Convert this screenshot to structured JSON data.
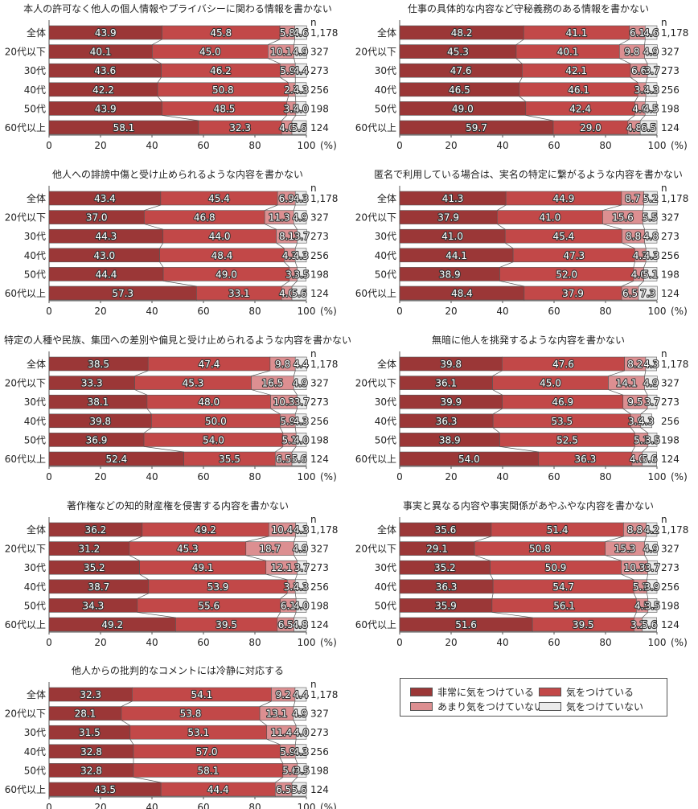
{
  "categories": [
    "全体",
    "20代以下",
    "30代",
    "40代",
    "50代",
    "60代以上"
  ],
  "n_header": "n",
  "n_values": [
    "1,178",
    "327",
    "273",
    "256",
    "198",
    "124"
  ],
  "x_ticks": [
    "0",
    "20",
    "40",
    "60",
    "80",
    "100"
  ],
  "x_unit": "(%)",
  "colors": [
    "#9b3737",
    "#c24848",
    "#dc8f91",
    "#ebebeb"
  ],
  "legend": [
    "非常に気をつけている",
    "気をつけている",
    "あまり気をつけていない",
    "気をつけていない"
  ],
  "chart_data": [
    {
      "type": "bar",
      "stacked": true,
      "orientation": "horizontal",
      "title": "本人の許可なく他人の個人情報やプライバシーに関わる情報を書かない",
      "values": [
        [
          43.9,
          45.8,
          5.8,
          4.6
        ],
        [
          40.1,
          45.0,
          10.1,
          4.9
        ],
        [
          43.6,
          46.2,
          5.9,
          4.4
        ],
        [
          42.2,
          50.8,
          2.7,
          4.3
        ],
        [
          43.9,
          48.5,
          3.5,
          4.0
        ],
        [
          58.1,
          32.3,
          4.0,
          5.6
        ]
      ]
    },
    {
      "type": "bar",
      "stacked": true,
      "orientation": "horizontal",
      "title": "仕事の具体的な内容など守秘義務のある情報を書かない",
      "values": [
        [
          48.2,
          41.1,
          6.1,
          4.6
        ],
        [
          45.3,
          40.1,
          9.8,
          4.9
        ],
        [
          47.6,
          42.1,
          6.6,
          3.7
        ],
        [
          46.5,
          46.1,
          3.1,
          4.3
        ],
        [
          49.0,
          42.4,
          4.0,
          4.5
        ],
        [
          59.7,
          29.0,
          4.8,
          6.5
        ]
      ]
    },
    {
      "type": "bar",
      "stacked": true,
      "orientation": "horizontal",
      "title": "他人への誹謗中傷と受け止められるような内容を書かない",
      "values": [
        [
          43.4,
          45.4,
          6.9,
          4.3
        ],
        [
          37.0,
          46.8,
          11.3,
          4.9
        ],
        [
          44.3,
          44.0,
          8.1,
          3.7
        ],
        [
          43.0,
          48.4,
          4.3,
          4.3
        ],
        [
          44.4,
          49.0,
          3.0,
          3.5
        ],
        [
          57.3,
          33.1,
          4.0,
          5.6
        ]
      ]
    },
    {
      "type": "bar",
      "stacked": true,
      "orientation": "horizontal",
      "title": "匿名で利用している場合は、実名の特定に繋がるような内容を書かない",
      "values": [
        [
          41.3,
          44.9,
          8.7,
          5.2
        ],
        [
          37.9,
          41.0,
          15.6,
          5.5
        ],
        [
          41.0,
          45.4,
          8.8,
          4.8
        ],
        [
          44.1,
          47.3,
          4.3,
          4.3
        ],
        [
          38.9,
          52.0,
          4.0,
          5.1
        ],
        [
          48.4,
          37.9,
          6.5,
          7.3
        ]
      ]
    },
    {
      "type": "bar",
      "stacked": true,
      "orientation": "horizontal",
      "title": "特定の人種や民族、集団への差別や偏見と受け止められるような内容を書かない",
      "values": [
        [
          38.5,
          47.4,
          9.8,
          4.4
        ],
        [
          33.3,
          45.3,
          16.5,
          4.9
        ],
        [
          38.1,
          48.0,
          10.3,
          3.7
        ],
        [
          39.8,
          50.0,
          5.9,
          4.3
        ],
        [
          36.9,
          54.0,
          5.1,
          4.0
        ],
        [
          52.4,
          35.5,
          6.5,
          5.6
        ]
      ]
    },
    {
      "type": "bar",
      "stacked": true,
      "orientation": "horizontal",
      "title": "無暗に他人を挑発するような内容を書かない",
      "values": [
        [
          39.8,
          47.6,
          8.2,
          4.3
        ],
        [
          36.1,
          45.0,
          14.1,
          4.9
        ],
        [
          39.9,
          46.9,
          9.5,
          3.7
        ],
        [
          36.3,
          53.5,
          3.9,
          4.3
        ],
        [
          38.9,
          52.5,
          5.1,
          3.5
        ],
        [
          54.0,
          36.3,
          4.0,
          5.6
        ]
      ]
    },
    {
      "type": "bar",
      "stacked": true,
      "orientation": "horizontal",
      "title": "著作権などの知的財産権を侵害する内容を書かない",
      "values": [
        [
          36.2,
          49.2,
          10.4,
          4.3
        ],
        [
          31.2,
          45.3,
          18.7,
          4.9
        ],
        [
          35.2,
          49.1,
          12.1,
          3.7
        ],
        [
          38.7,
          53.9,
          3.1,
          4.3
        ],
        [
          34.3,
          55.6,
          6.1,
          4.0
        ],
        [
          49.2,
          39.5,
          6.5,
          4.8
        ]
      ]
    },
    {
      "type": "bar",
      "stacked": true,
      "orientation": "horizontal",
      "title": "事実と異なる内容や事実関係があやふやな内容を書かない",
      "values": [
        [
          35.6,
          51.4,
          8.8,
          4.2
        ],
        [
          29.1,
          50.8,
          15.3,
          4.9
        ],
        [
          35.2,
          50.9,
          10.3,
          3.7
        ],
        [
          36.3,
          54.7,
          5.1,
          3.9
        ],
        [
          35.9,
          56.1,
          4.5,
          3.5
        ],
        [
          51.6,
          39.5,
          3.2,
          5.6
        ]
      ]
    },
    {
      "type": "bar",
      "stacked": true,
      "orientation": "horizontal",
      "title": "他人からの批判的なコメントには冷静に対応する",
      "values": [
        [
          32.3,
          54.1,
          9.2,
          4.4
        ],
        [
          28.1,
          53.8,
          13.1,
          4.9
        ],
        [
          31.5,
          53.1,
          11.4,
          4.0
        ],
        [
          32.8,
          57.0,
          5.9,
          4.3
        ],
        [
          32.8,
          58.1,
          5.6,
          3.5
        ],
        [
          43.5,
          44.4,
          6.5,
          5.6
        ]
      ]
    }
  ]
}
